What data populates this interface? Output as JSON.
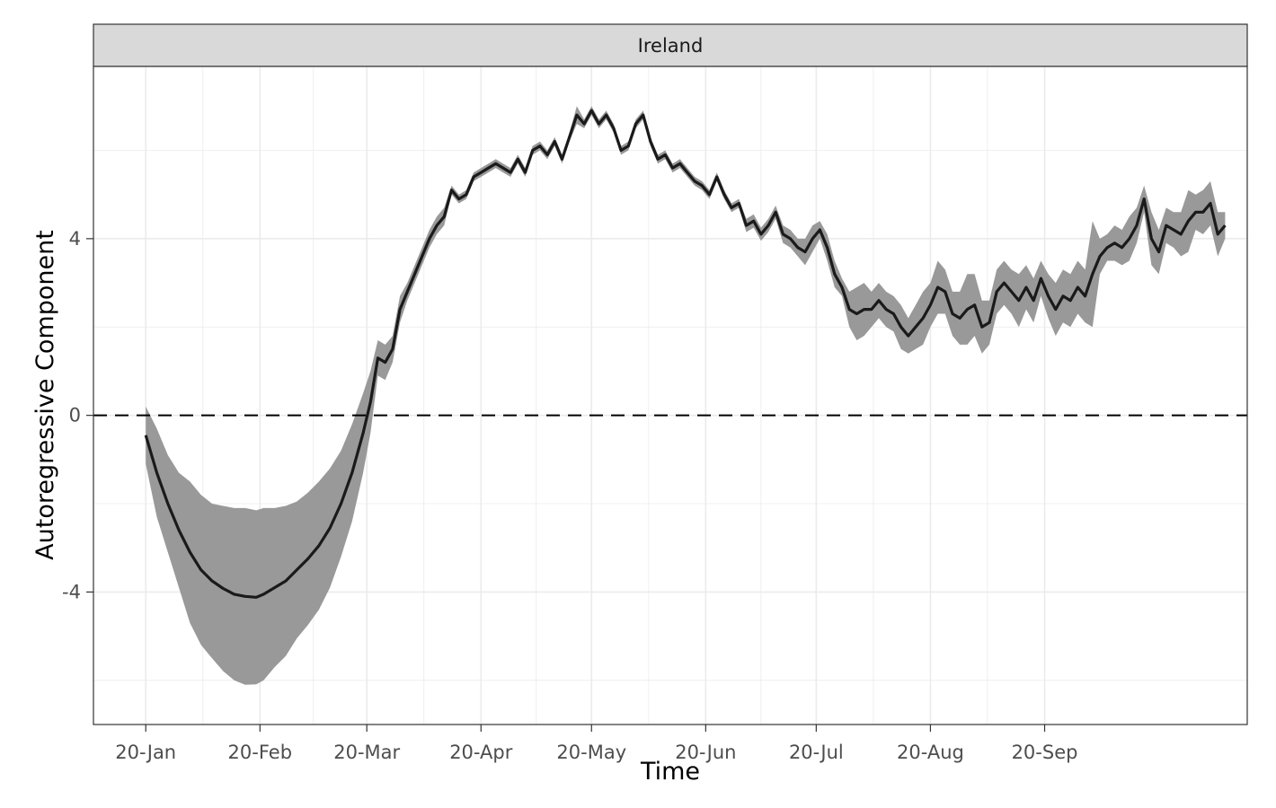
{
  "chart_data": {
    "type": "line",
    "panel": "Ireland",
    "xlabel": "Time",
    "ylabel": "Autoregressive Component",
    "x_ticks": [
      "20-Jan",
      "20-Feb",
      "20-Mar",
      "20-Apr",
      "20-May",
      "20-Jun",
      "20-Jul",
      "20-Aug",
      "20-Sep"
    ],
    "y_ticks": [
      -4,
      0,
      4
    ],
    "ylim": [
      -7.0,
      7.9
    ],
    "xlim_days": [
      -14.2,
      299
    ],
    "reference_line": {
      "y": 0,
      "style": "dashed"
    },
    "grid": true,
    "legend": "none",
    "colors": {
      "line": "#1a1a1a",
      "band": "#999999",
      "grid": "#ebebeb",
      "strip": "#d9d9d9"
    },
    "series": [
      {
        "x": [
          0,
          3,
          6,
          9,
          12,
          15,
          18,
          21,
          24,
          27,
          30,
          32,
          35,
          38,
          41,
          44,
          47,
          50,
          53,
          56,
          59,
          61,
          63,
          65,
          67,
          69,
          71,
          73,
          75,
          77,
          79,
          81,
          83,
          85,
          87,
          89,
          91,
          93,
          95,
          97,
          99,
          101,
          103,
          105,
          107,
          109,
          111,
          113,
          115,
          117,
          119,
          121,
          123,
          125,
          127,
          129,
          131,
          133,
          135,
          137,
          139,
          141,
          143,
          145,
          147,
          149,
          151,
          153,
          155,
          157,
          159,
          161,
          163,
          165,
          167,
          169,
          171,
          173,
          175,
          177,
          179,
          181,
          183,
          185,
          187,
          189,
          191,
          193,
          195,
          197,
          199,
          201,
          203,
          205,
          207,
          209,
          211,
          213,
          215,
          217,
          219,
          221,
          223,
          225,
          227,
          229,
          231,
          233,
          235,
          237,
          239,
          241,
          243,
          245,
          247,
          249,
          251,
          253,
          255,
          257,
          259,
          261,
          263,
          265,
          267,
          269,
          271,
          273,
          275,
          277,
          279,
          281,
          283,
          285,
          287,
          289,
          291,
          293
        ],
        "y": [
          -0.45,
          -1.3,
          -2.0,
          -2.6,
          -3.1,
          -3.5,
          -3.75,
          -3.92,
          -4.05,
          -4.1,
          -4.12,
          -4.05,
          -3.9,
          -3.75,
          -3.5,
          -3.25,
          -2.95,
          -2.55,
          -2.0,
          -1.3,
          -0.4,
          0.3,
          1.3,
          1.2,
          1.5,
          2.4,
          2.8,
          3.2,
          3.6,
          4.0,
          4.3,
          4.5,
          5.1,
          4.9,
          5.0,
          5.4,
          5.5,
          5.6,
          5.7,
          5.6,
          5.5,
          5.8,
          5.5,
          6.0,
          6.1,
          5.9,
          6.2,
          5.8,
          6.3,
          6.8,
          6.6,
          6.9,
          6.6,
          6.8,
          6.5,
          6.0,
          6.1,
          6.6,
          6.8,
          6.2,
          5.8,
          5.9,
          5.6,
          5.7,
          5.5,
          5.3,
          5.2,
          5.0,
          5.4,
          5.0,
          4.7,
          4.8,
          4.3,
          4.4,
          4.1,
          4.3,
          4.6,
          4.1,
          4.0,
          3.8,
          3.7,
          4.0,
          4.2,
          3.8,
          3.2,
          2.9,
          2.4,
          2.3,
          2.4,
          2.4,
          2.6,
          2.4,
          2.3,
          2.0,
          1.8,
          2.0,
          2.2,
          2.5,
          2.9,
          2.8,
          2.3,
          2.2,
          2.4,
          2.5,
          2.0,
          2.1,
          2.8,
          3.0,
          2.8,
          2.6,
          2.9,
          2.6,
          3.1,
          2.7,
          2.4,
          2.7,
          2.6,
          2.9,
          2.7,
          3.2,
          3.6,
          3.8,
          3.9,
          3.8,
          4.0,
          4.3,
          4.9,
          4.0,
          3.7,
          4.3,
          4.2,
          4.1,
          4.4,
          4.6,
          4.6,
          4.8,
          4.1,
          4.3
        ]
      }
    ],
    "band": {
      "upper": [
        0.2,
        -0.3,
        -0.9,
        -1.3,
        -1.5,
        -1.8,
        -2.0,
        -2.05,
        -2.1,
        -2.1,
        -2.15,
        -2.1,
        -2.1,
        -2.05,
        -1.95,
        -1.75,
        -1.5,
        -1.2,
        -0.8,
        -0.2,
        0.5,
        1.0,
        1.7,
        1.6,
        1.8,
        2.7,
        3.0,
        3.4,
        3.8,
        4.2,
        4.5,
        4.7,
        5.2,
        5.0,
        5.1,
        5.5,
        5.6,
        5.7,
        5.8,
        5.7,
        5.6,
        5.9,
        5.6,
        6.1,
        6.2,
        6.0,
        6.3,
        5.9,
        6.4,
        7.0,
        6.7,
        7.0,
        6.7,
        6.9,
        6.6,
        6.1,
        6.2,
        6.7,
        6.9,
        6.3,
        5.9,
        6.0,
        5.7,
        5.8,
        5.6,
        5.4,
        5.3,
        5.1,
        5.5,
        5.1,
        4.8,
        4.9,
        4.45,
        4.55,
        4.25,
        4.45,
        4.75,
        4.3,
        4.2,
        4.0,
        4.0,
        4.3,
        4.4,
        4.1,
        3.5,
        3.1,
        2.8,
        2.9,
        3.0,
        2.8,
        3.0,
        2.8,
        2.7,
        2.5,
        2.2,
        2.5,
        2.8,
        3.0,
        3.5,
        3.3,
        2.8,
        2.8,
        3.2,
        3.2,
        2.6,
        2.6,
        3.3,
        3.5,
        3.3,
        3.2,
        3.4,
        3.1,
        3.5,
        3.2,
        3.0,
        3.3,
        3.2,
        3.5,
        3.3,
        4.4,
        4.0,
        4.1,
        4.3,
        4.2,
        4.5,
        4.7,
        5.2,
        4.6,
        4.2,
        4.7,
        4.6,
        4.6,
        5.1,
        5.0,
        5.1,
        5.3,
        4.6,
        4.6
      ]
    }
  }
}
